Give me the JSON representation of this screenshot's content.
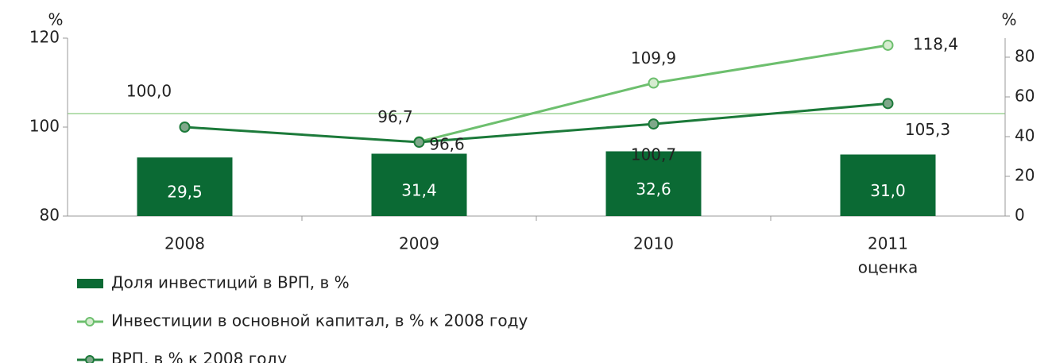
{
  "chart_data": {
    "type": "bar_line",
    "categories": [
      "2008",
      "2009",
      "2010",
      "2011"
    ],
    "annotations": [
      "оценка"
    ],
    "ylabel": "%",
    "y2label": "%",
    "ylim": [
      80,
      120
    ],
    "yticks": [
      80,
      100,
      120
    ],
    "y2lim": [
      0,
      89.6
    ],
    "y2ticks": [
      0,
      20,
      40,
      60,
      80
    ],
    "series": [
      {
        "name": "Доля инвестиций в ВРП, в %",
        "type": "bar",
        "axis": "y2",
        "color": "#0b6a34",
        "values": [
          29.5,
          31.4,
          32.6,
          31.0
        ],
        "value_labels": [
          "29,5",
          "31,4",
          "32,6",
          "31,0"
        ]
      },
      {
        "name": "Инвестиции в основной капитал, в % к 2008 году",
        "type": "line",
        "color": "#6dbf6e",
        "marker_color": "#d6ecd0",
        "values": [
          null,
          96.7,
          109.9,
          118.4
        ],
        "value_labels": [
          null,
          "96,7",
          "109,9",
          "118,4"
        ]
      },
      {
        "name": "ВРП, в % к 2008 году",
        "type": "line",
        "color": "#1c7a3a",
        "marker_color": "#7fa88a",
        "values": [
          100.0,
          96.6,
          100.7,
          105.3
        ],
        "value_labels": [
          "100,0",
          "96,6",
          "100,7",
          "105,3"
        ]
      }
    ]
  }
}
